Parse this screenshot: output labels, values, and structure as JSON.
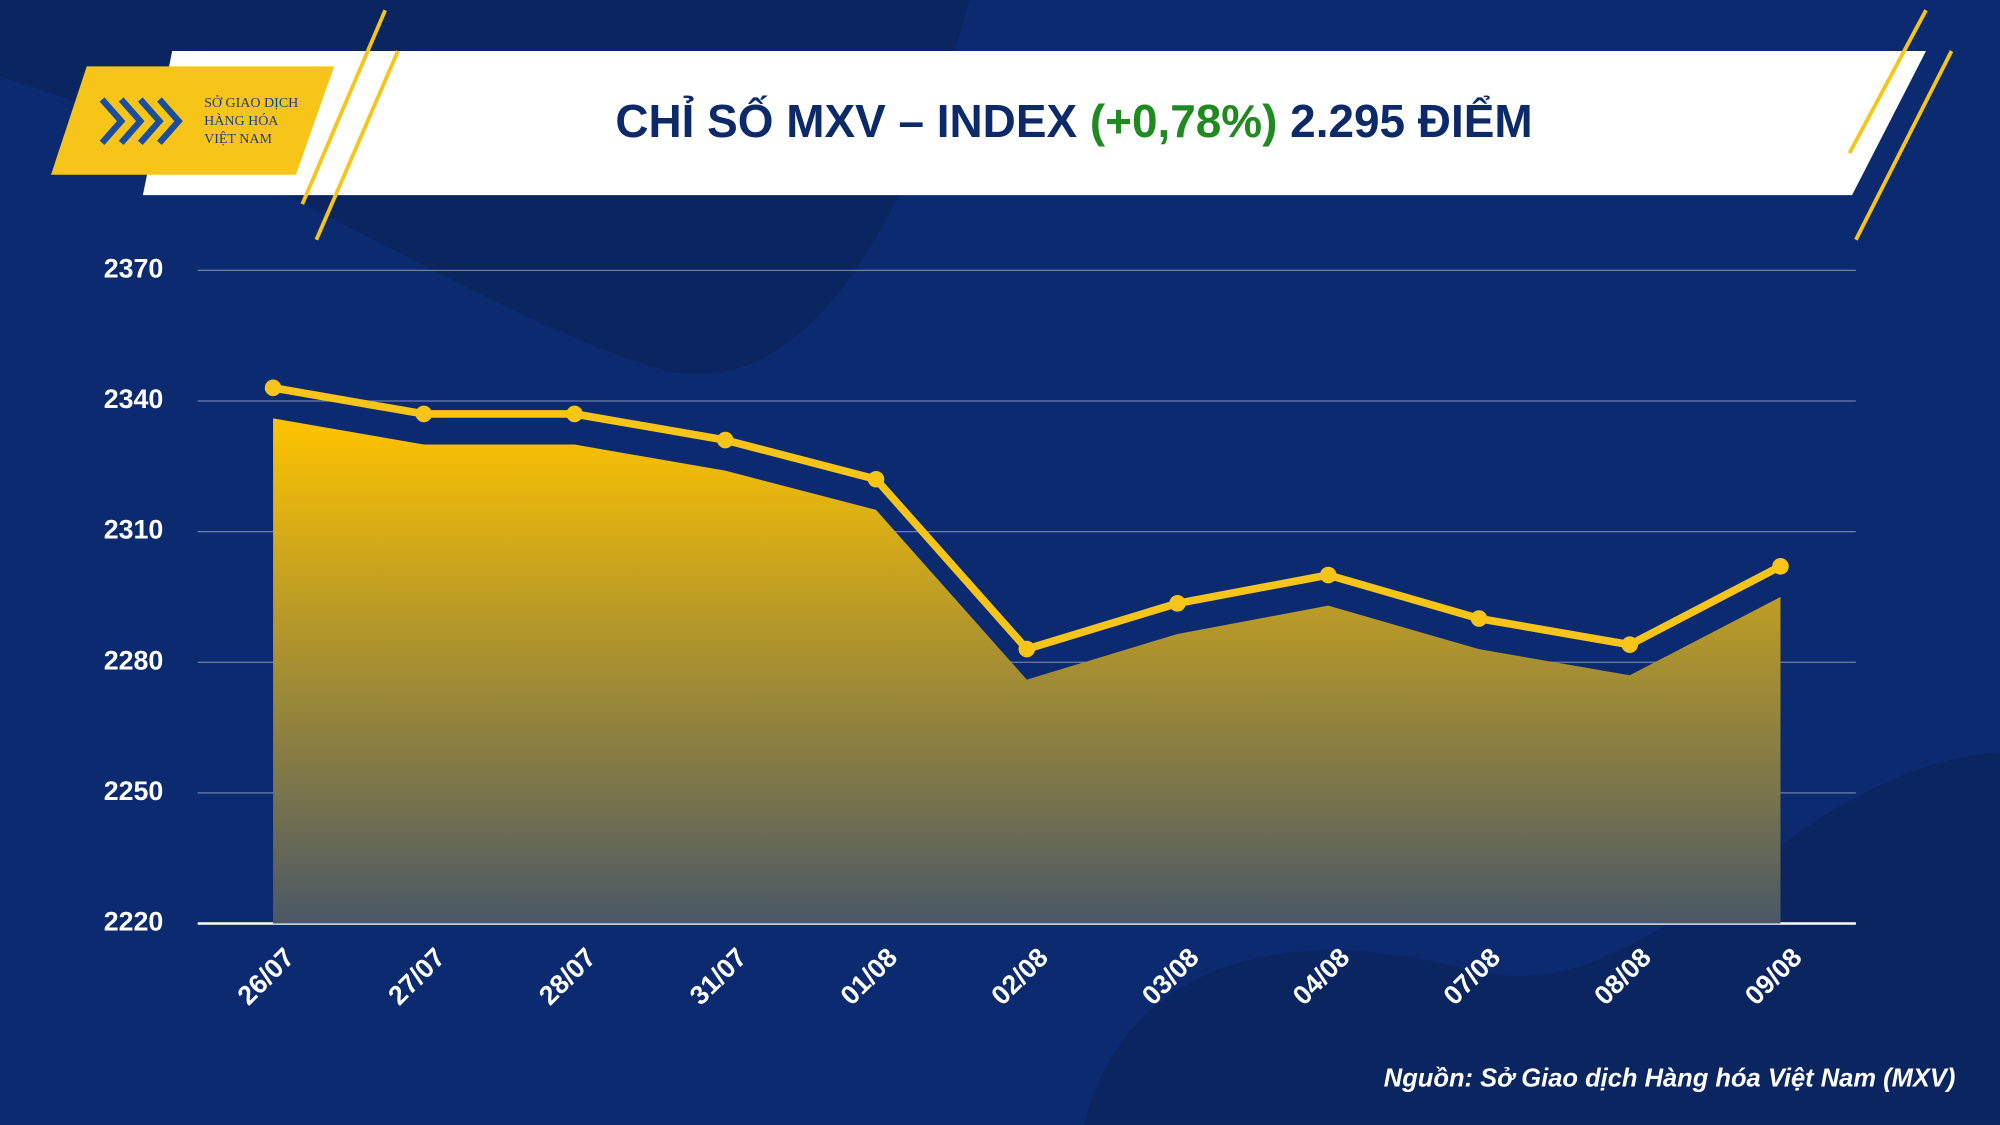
{
  "logo": {
    "lines": [
      "SỞ GIAO DỊCH",
      "HÀNG HÓA",
      "VIỆT NAM"
    ]
  },
  "chart_data": {
    "type": "area-line",
    "title": [
      "CHỈ SỐ MXV – INDEX",
      "(+0,78%)",
      "2.295 ĐIỂM"
    ],
    "source": "Nguồn: Sở Giao dịch Hàng hóa Việt Nam (MXV)",
    "categories": [
      "26/07",
      "27/07",
      "28/07",
      "31/07",
      "01/08",
      "02/08",
      "03/08",
      "04/08",
      "07/08",
      "08/08",
      "09/08"
    ],
    "values": [
      2336,
      2330,
      2330,
      2324,
      2315,
      2276,
      2286.5,
      2293,
      2283,
      2277,
      2295
    ],
    "color": "#f7c51a",
    "ylim": [
      2220,
      2370
    ],
    "yticks": [
      2220,
      2250,
      2280,
      2310,
      2340,
      2370
    ],
    "grid": true
  }
}
